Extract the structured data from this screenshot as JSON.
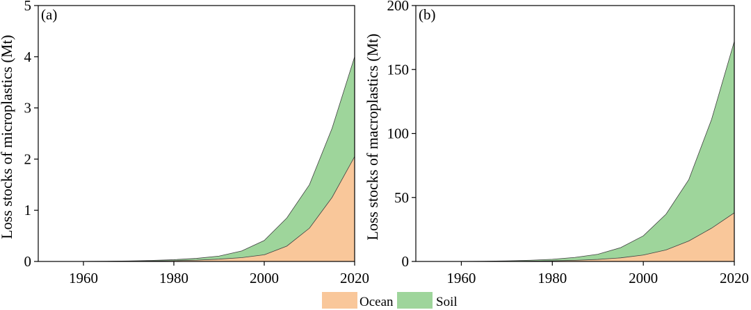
{
  "colors": {
    "ocean": "#f9c79a",
    "soil": "#9ed59b",
    "outline": "#404040"
  },
  "legend": {
    "placement": "bottom-center",
    "items": [
      {
        "name": "Ocean",
        "color": "#f9c79a"
      },
      {
        "name": "Soil",
        "color": "#9ed59b"
      }
    ]
  },
  "chart_data": [
    {
      "type": "area",
      "stacked": true,
      "panel_label": "(a)",
      "ylabel": "Loss stocks of microplastics (Mt)",
      "xlim": [
        1950,
        2020
      ],
      "ylim": [
        0,
        5
      ],
      "xticks": [
        "1960",
        "1980",
        "2000",
        "2020"
      ],
      "xtick_values": [
        1960,
        1980,
        2000,
        2020
      ],
      "yticks": [
        "0",
        "1",
        "2",
        "3",
        "4",
        "5"
      ],
      "ytick_values": [
        0,
        1,
        2,
        3,
        4,
        5
      ],
      "x": [
        1950,
        1955,
        1960,
        1965,
        1970,
        1975,
        1980,
        1985,
        1990,
        1995,
        2000,
        2005,
        2010,
        2015,
        2020
      ],
      "series": [
        {
          "name": "Ocean",
          "values": [
            0,
            0,
            0.001,
            0.002,
            0.004,
            0.008,
            0.015,
            0.025,
            0.045,
            0.075,
            0.13,
            0.3,
            0.65,
            1.25,
            2.05
          ]
        },
        {
          "name": "Soil",
          "values": [
            0,
            0,
            0.001,
            0.003,
            0.006,
            0.012,
            0.02,
            0.035,
            0.06,
            0.13,
            0.28,
            0.55,
            0.85,
            1.35,
            1.95
          ]
        }
      ]
    },
    {
      "type": "area",
      "stacked": true,
      "panel_label": "(b)",
      "ylabel": "Loss stocks of macroplastics (Mt)",
      "xlim": [
        1950,
        2020
      ],
      "ylim": [
        0,
        200
      ],
      "xticks": [
        "1960",
        "1980",
        "2000",
        "2020"
      ],
      "xtick_values": [
        1960,
        1980,
        2000,
        2020
      ],
      "yticks": [
        "0",
        "50",
        "100",
        "150",
        "200"
      ],
      "ytick_values": [
        0,
        50,
        100,
        150,
        200
      ],
      "x": [
        1950,
        1955,
        1960,
        1965,
        1970,
        1975,
        1980,
        1985,
        1990,
        1995,
        2000,
        2005,
        2010,
        2015,
        2020
      ],
      "series": [
        {
          "name": "Ocean",
          "values": [
            0,
            0,
            0.02,
            0.06,
            0.12,
            0.25,
            0.5,
            0.9,
            1.6,
            2.8,
            5,
            9,
            16,
            26,
            38
          ]
        },
        {
          "name": "Soil",
          "values": [
            0,
            0,
            0.05,
            0.15,
            0.35,
            0.7,
            1.2,
            2.3,
            4,
            8,
            15,
            28,
            48,
            85,
            134
          ]
        }
      ]
    }
  ]
}
